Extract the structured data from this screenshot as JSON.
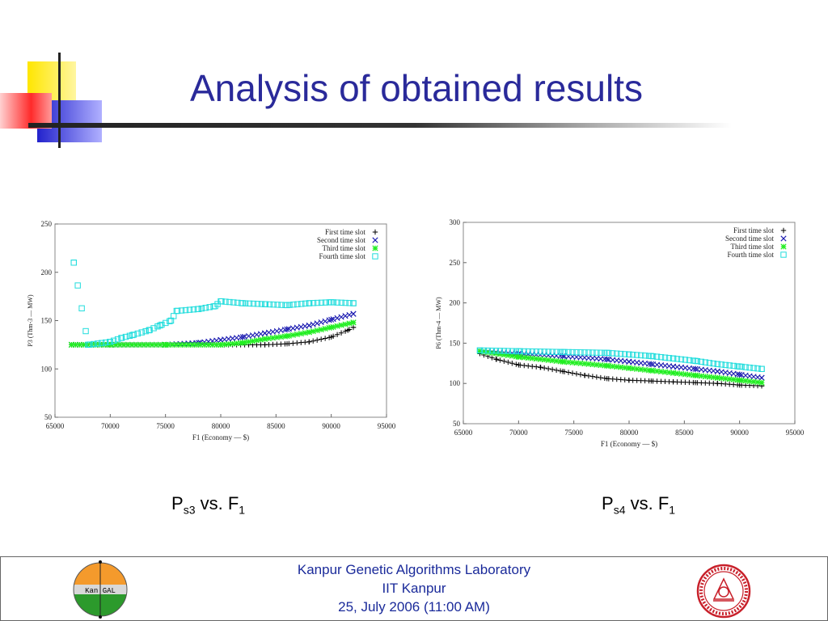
{
  "title": "Analysis of obtained results",
  "colors": {
    "title": "#2a2a9a",
    "footer_text": "#1a2a9a",
    "series1": "#000000",
    "series2": "#1a1ab0",
    "series3": "#22ee22",
    "series4": "#22dddd"
  },
  "captions": [
    {
      "main": "P",
      "sub": "s3",
      "vs": " vs. F",
      "sub2": "1"
    },
    {
      "main": "P",
      "sub": "s4",
      "vs": " vs. F",
      "sub2": "1"
    }
  ],
  "footer": {
    "line1": "Kanpur Genetic Algorithms Laboratory",
    "line2": "IIT Kanpur",
    "line3": "25, July 2006 (11:00 AM)",
    "logo_left_text": "Kan GAL"
  },
  "chart_data": [
    {
      "type": "scatter",
      "xlabel": "F1 (Economy — $)",
      "ylabel": "P3 (Thm-3 — MW)",
      "xlim": [
        65000,
        95000
      ],
      "ylim": [
        50,
        250
      ],
      "xticks": [
        65000,
        70000,
        75000,
        80000,
        85000,
        90000,
        95000
      ],
      "yticks": [
        50,
        100,
        150,
        200,
        250
      ],
      "legend_position": "top-right",
      "series": [
        {
          "name": "First time slot",
          "marker": "+",
          "color": "#000000",
          "x": [
            66500,
            70000,
            75000,
            80000,
            84000,
            86000,
            88000,
            90000,
            91500,
            92000
          ],
          "y": [
            125,
            125,
            125,
            125,
            125,
            126,
            128,
            133,
            140,
            143
          ]
        },
        {
          "name": "Second time slot",
          "marker": "x",
          "color": "#1a1ab0",
          "x": [
            66500,
            70000,
            75000,
            78000,
            80000,
            82000,
            84000,
            86000,
            88000,
            90000,
            92000
          ],
          "y": [
            125,
            125,
            125,
            127,
            130,
            133,
            137,
            141,
            145,
            151,
            157
          ]
        },
        {
          "name": "Third time slot",
          "marker": "*",
          "color": "#22ee22",
          "x": [
            66500,
            70000,
            75000,
            80000,
            82000,
            84000,
            86000,
            88000,
            90000,
            92000
          ],
          "y": [
            125,
            125,
            125,
            125,
            127,
            131,
            134,
            138,
            143,
            148
          ]
        },
        {
          "name": "Fourth time slot",
          "marker": "square",
          "color": "#22dddd",
          "x": [
            66700,
            68000,
            70000,
            71000,
            72000,
            73500,
            74500,
            75500,
            76000,
            78000,
            79500,
            80000,
            82000,
            84000,
            86000,
            88000,
            90000,
            92000
          ],
          "y": [
            210,
            125,
            128,
            132,
            135,
            140,
            145,
            150,
            160,
            162,
            165,
            170,
            168,
            167,
            166,
            168,
            169,
            168
          ]
        }
      ]
    },
    {
      "type": "scatter",
      "xlabel": "F1 (Economy — $)",
      "ylabel": "P6 (Thm-4 — MW)",
      "xlim": [
        65000,
        95000
      ],
      "ylim": [
        50,
        300
      ],
      "xticks": [
        65000,
        70000,
        75000,
        80000,
        85000,
        90000,
        95000
      ],
      "yticks": [
        50,
        100,
        150,
        200,
        250,
        300
      ],
      "legend_position": "top-right",
      "series": [
        {
          "name": "First time slot",
          "marker": "+",
          "color": "#000000",
          "x": [
            66500,
            68000,
            70000,
            72000,
            74000,
            76000,
            78000,
            80000,
            82000,
            84000,
            86000,
            88000,
            90000,
            92000
          ],
          "y": [
            137,
            130,
            123,
            120,
            115,
            110,
            106,
            104,
            103,
            102,
            101,
            100,
            98,
            97
          ]
        },
        {
          "name": "Second time slot",
          "marker": "x",
          "color": "#1a1ab0",
          "x": [
            66500,
            70000,
            74000,
            78000,
            80000,
            82000,
            84000,
            86000,
            88000,
            90000,
            92000
          ],
          "y": [
            140,
            137,
            134,
            130,
            127,
            124,
            121,
            118,
            115,
            111,
            107
          ]
        },
        {
          "name": "Third time slot",
          "marker": "*",
          "color": "#22ee22",
          "x": [
            66500,
            70000,
            74000,
            78000,
            80000,
            82000,
            84000,
            86000,
            88000,
            90000,
            92000
          ],
          "y": [
            140,
            133,
            127,
            122,
            119,
            116,
            113,
            110,
            107,
            104,
            101
          ]
        },
        {
          "name": "Fourth time slot",
          "marker": "square",
          "color": "#22dddd",
          "x": [
            66500,
            70000,
            74000,
            78000,
            80000,
            82000,
            84000,
            86000,
            88000,
            90000,
            92000
          ],
          "y": [
            141,
            140,
            139,
            138,
            136,
            134,
            131,
            128,
            124,
            121,
            118
          ]
        }
      ]
    }
  ]
}
